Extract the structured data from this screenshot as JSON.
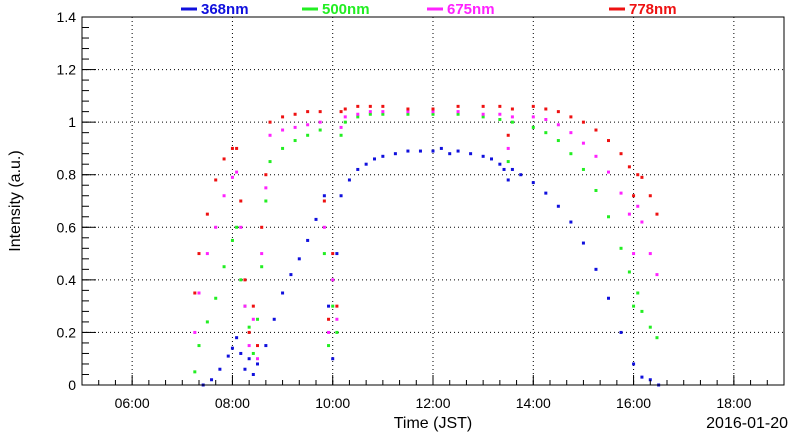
{
  "chart_data": {
    "type": "scatter",
    "xlabel": "Time (JST)",
    "ylabel": "Intensity (a.u.)",
    "date_label": "2016-01-20",
    "xlim": [
      "05:00",
      "19:00"
    ],
    "ylim": [
      0,
      1.4
    ],
    "x_ticks": [
      "06:00",
      "08:00",
      "10:00",
      "12:00",
      "14:00",
      "16:00",
      "18:00"
    ],
    "y_ticks": [
      "0",
      "0.2",
      "0.4",
      "0.6",
      "0.8",
      "1",
      "1.2",
      "1.4"
    ],
    "grid": true,
    "legend_position": "top",
    "series": [
      {
        "name": "368nm",
        "color": "#1010dd",
        "points": [
          [
            "07:25",
            0.0
          ],
          [
            "07:35",
            0.02
          ],
          [
            "07:45",
            0.06
          ],
          [
            "07:55",
            0.11
          ],
          [
            "08:00",
            0.14
          ],
          [
            "08:05",
            0.18
          ],
          [
            "08:10",
            0.12
          ],
          [
            "08:15",
            0.06
          ],
          [
            "08:20",
            0.1
          ],
          [
            "08:25",
            0.04
          ],
          [
            "08:30",
            0.08
          ],
          [
            "08:40",
            0.15
          ],
          [
            "08:50",
            0.25
          ],
          [
            "09:00",
            0.35
          ],
          [
            "09:10",
            0.42
          ],
          [
            "09:20",
            0.48
          ],
          [
            "09:30",
            0.55
          ],
          [
            "09:40",
            0.63
          ],
          [
            "09:50",
            0.72
          ],
          [
            "09:55",
            0.3
          ],
          [
            "10:00",
            0.1
          ],
          [
            "10:05",
            0.5
          ],
          [
            "10:10",
            0.72
          ],
          [
            "10:20",
            0.78
          ],
          [
            "10:30",
            0.82
          ],
          [
            "10:40",
            0.84
          ],
          [
            "10:50",
            0.86
          ],
          [
            "11:00",
            0.87
          ],
          [
            "11:15",
            0.88
          ],
          [
            "11:30",
            0.89
          ],
          [
            "11:45",
            0.89
          ],
          [
            "12:00",
            0.89
          ],
          [
            "12:10",
            0.9
          ],
          [
            "12:20",
            0.88
          ],
          [
            "12:30",
            0.89
          ],
          [
            "12:45",
            0.88
          ],
          [
            "13:00",
            0.87
          ],
          [
            "13:10",
            0.86
          ],
          [
            "13:20",
            0.84
          ],
          [
            "13:25",
            0.82
          ],
          [
            "13:30",
            0.78
          ],
          [
            "13:35",
            0.82
          ],
          [
            "13:45",
            0.8
          ],
          [
            "14:00",
            0.77
          ],
          [
            "14:15",
            0.73
          ],
          [
            "14:30",
            0.68
          ],
          [
            "14:45",
            0.62
          ],
          [
            "15:00",
            0.54
          ],
          [
            "15:15",
            0.44
          ],
          [
            "15:30",
            0.33
          ],
          [
            "15:45",
            0.2
          ],
          [
            "16:00",
            0.08
          ],
          [
            "16:10",
            0.03
          ],
          [
            "16:20",
            0.02
          ],
          [
            "16:30",
            0.0
          ]
        ]
      },
      {
        "name": "500nm",
        "color": "#22ee22",
        "points": [
          [
            "07:15",
            0.05
          ],
          [
            "07:20",
            0.15
          ],
          [
            "07:30",
            0.24
          ],
          [
            "07:40",
            0.33
          ],
          [
            "07:50",
            0.45
          ],
          [
            "08:00",
            0.55
          ],
          [
            "08:05",
            0.6
          ],
          [
            "08:10",
            0.4
          ],
          [
            "08:15",
            0.3
          ],
          [
            "08:20",
            0.22
          ],
          [
            "08:25",
            0.12
          ],
          [
            "08:30",
            0.25
          ],
          [
            "08:35",
            0.45
          ],
          [
            "08:40",
            0.7
          ],
          [
            "08:45",
            0.85
          ],
          [
            "09:00",
            0.9
          ],
          [
            "09:15",
            0.93
          ],
          [
            "09:30",
            0.95
          ],
          [
            "09:45",
            0.97
          ],
          [
            "09:50",
            0.5
          ],
          [
            "09:55",
            0.15
          ],
          [
            "10:00",
            0.3
          ],
          [
            "10:05",
            0.2
          ],
          [
            "10:10",
            0.95
          ],
          [
            "10:15",
            1.0
          ],
          [
            "10:30",
            1.02
          ],
          [
            "10:45",
            1.03
          ],
          [
            "11:00",
            1.03
          ],
          [
            "11:30",
            1.03
          ],
          [
            "12:00",
            1.03
          ],
          [
            "12:30",
            1.03
          ],
          [
            "13:00",
            1.02
          ],
          [
            "13:20",
            1.01
          ],
          [
            "13:30",
            0.85
          ],
          [
            "13:35",
            1.0
          ],
          [
            "14:00",
            0.98
          ],
          [
            "14:15",
            0.96
          ],
          [
            "14:30",
            0.93
          ],
          [
            "14:45",
            0.88
          ],
          [
            "15:00",
            0.82
          ],
          [
            "15:15",
            0.74
          ],
          [
            "15:30",
            0.64
          ],
          [
            "15:45",
            0.52
          ],
          [
            "15:55",
            0.43
          ],
          [
            "16:00",
            0.3
          ],
          [
            "16:05",
            0.35
          ],
          [
            "16:10",
            0.28
          ],
          [
            "16:20",
            0.22
          ],
          [
            "16:28",
            0.18
          ]
        ]
      },
      {
        "name": "675nm",
        "color": "#ff22ff",
        "points": [
          [
            "07:15",
            0.2
          ],
          [
            "07:20",
            0.35
          ],
          [
            "07:30",
            0.5
          ],
          [
            "07:40",
            0.6
          ],
          [
            "07:50",
            0.72
          ],
          [
            "08:00",
            0.79
          ],
          [
            "08:05",
            0.81
          ],
          [
            "08:10",
            0.6
          ],
          [
            "08:15",
            0.3
          ],
          [
            "08:20",
            0.15
          ],
          [
            "08:25",
            0.25
          ],
          [
            "08:30",
            0.1
          ],
          [
            "08:35",
            0.5
          ],
          [
            "08:40",
            0.75
          ],
          [
            "08:45",
            0.95
          ],
          [
            "09:00",
            0.97
          ],
          [
            "09:15",
            0.98
          ],
          [
            "09:30",
            0.99
          ],
          [
            "09:45",
            1.0
          ],
          [
            "09:50",
            0.6
          ],
          [
            "09:55",
            0.2
          ],
          [
            "10:00",
            0.4
          ],
          [
            "10:05",
            0.25
          ],
          [
            "10:10",
            0.98
          ],
          [
            "10:15",
            1.02
          ],
          [
            "10:30",
            1.03
          ],
          [
            "10:45",
            1.04
          ],
          [
            "11:00",
            1.04
          ],
          [
            "11:30",
            1.04
          ],
          [
            "12:00",
            1.04
          ],
          [
            "12:30",
            1.04
          ],
          [
            "13:00",
            1.03
          ],
          [
            "13:20",
            1.03
          ],
          [
            "13:30",
            0.9
          ],
          [
            "13:35",
            1.02
          ],
          [
            "14:00",
            1.02
          ],
          [
            "14:15",
            1.01
          ],
          [
            "14:30",
            0.99
          ],
          [
            "14:45",
            0.96
          ],
          [
            "15:00",
            0.92
          ],
          [
            "15:15",
            0.87
          ],
          [
            "15:30",
            0.81
          ],
          [
            "15:45",
            0.73
          ],
          [
            "15:55",
            0.65
          ],
          [
            "16:00",
            0.5
          ],
          [
            "16:05",
            0.68
          ],
          [
            "16:10",
            0.62
          ],
          [
            "16:20",
            0.5
          ],
          [
            "16:28",
            0.42
          ]
        ]
      },
      {
        "name": "778nm",
        "color": "#ee1111",
        "points": [
          [
            "07:15",
            0.35
          ],
          [
            "07:20",
            0.5
          ],
          [
            "07:30",
            0.65
          ],
          [
            "07:40",
            0.78
          ],
          [
            "07:50",
            0.86
          ],
          [
            "08:00",
            0.9
          ],
          [
            "08:05",
            0.9
          ],
          [
            "08:10",
            0.7
          ],
          [
            "08:15",
            0.4
          ],
          [
            "08:20",
            0.2
          ],
          [
            "08:25",
            0.3
          ],
          [
            "08:30",
            0.15
          ],
          [
            "08:35",
            0.6
          ],
          [
            "08:40",
            0.8
          ],
          [
            "08:45",
            1.0
          ],
          [
            "09:00",
            1.02
          ],
          [
            "09:15",
            1.03
          ],
          [
            "09:30",
            1.04
          ],
          [
            "09:45",
            1.04
          ],
          [
            "09:50",
            0.7
          ],
          [
            "09:55",
            0.25
          ],
          [
            "10:00",
            0.5
          ],
          [
            "10:05",
            0.3
          ],
          [
            "10:10",
            1.04
          ],
          [
            "10:15",
            1.05
          ],
          [
            "10:30",
            1.06
          ],
          [
            "10:45",
            1.06
          ],
          [
            "11:00",
            1.06
          ],
          [
            "11:30",
            1.05
          ],
          [
            "12:00",
            1.05
          ],
          [
            "12:30",
            1.06
          ],
          [
            "13:00",
            1.06
          ],
          [
            "13:20",
            1.06
          ],
          [
            "13:30",
            0.95
          ],
          [
            "13:35",
            1.05
          ],
          [
            "14:00",
            1.06
          ],
          [
            "14:15",
            1.05
          ],
          [
            "14:30",
            1.04
          ],
          [
            "14:45",
            1.02
          ],
          [
            "15:00",
            1.0
          ],
          [
            "15:15",
            0.97
          ],
          [
            "15:30",
            0.93
          ],
          [
            "15:45",
            0.88
          ],
          [
            "15:55",
            0.83
          ],
          [
            "16:00",
            0.72
          ],
          [
            "16:05",
            0.8
          ],
          [
            "16:10",
            0.79
          ],
          [
            "16:20",
            0.72
          ],
          [
            "16:28",
            0.65
          ]
        ]
      }
    ]
  }
}
